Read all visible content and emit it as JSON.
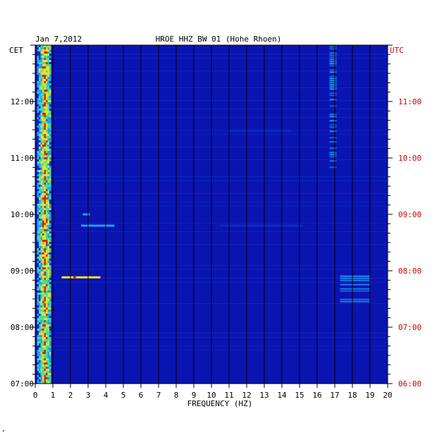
{
  "chart_data": {
    "type": "heatmap",
    "date": "Jan 7,2012",
    "station": "HROE HHZ BW 01 (Hohe Rhoen)",
    "left_zone": "CET",
    "right_zone": "UTC",
    "xlabel": "FREQUENCY (HZ)",
    "x_ticks": [
      "0",
      "1",
      "2",
      "3",
      "4",
      "5",
      "6",
      "7",
      "8",
      "9",
      "10",
      "11",
      "12",
      "13",
      "14",
      "15",
      "16",
      "17",
      "18",
      "19",
      "20"
    ],
    "xlim": [
      0,
      20
    ],
    "cet_ticks": [
      "07:00",
      "08:00",
      "09:00",
      "10:00",
      "11:00",
      "12:00"
    ],
    "utc_ticks": [
      "06:00",
      "07:00",
      "08:00",
      "09:00",
      "10:00",
      "11:00"
    ],
    "ylim_utc": [
      "06:00",
      "12:00"
    ],
    "corner_mark": "*",
    "colors": {
      "background": "#0a14b0",
      "low": "#1028c8",
      "mid": "#20a0ff",
      "high": "#f0e020",
      "peak": "#e02010",
      "utc_label": "#d00000"
    },
    "features": [
      {
        "name": "microseism band",
        "freq_range": [
          0.1,
          0.9
        ],
        "time_range_utc": [
          "06:00",
          "12:00"
        ],
        "level": "high"
      },
      {
        "name": "burst",
        "freq_range": [
          1.5,
          3.7
        ],
        "time_utc": "07:53",
        "level": "high"
      },
      {
        "name": "line",
        "freq_range": [
          2.6,
          4.5
        ],
        "time_utc": "08:48",
        "level": "mid"
      },
      {
        "name": "line",
        "freq_range": [
          2.7,
          3.1
        ],
        "time_utc": "09:00",
        "level": "mid"
      },
      {
        "name": "line",
        "freq_range": [
          10.5,
          15.2
        ],
        "time_utc": "08:48",
        "level": "low"
      },
      {
        "name": "band",
        "freq_range": [
          16.7,
          17.1
        ],
        "time_range_utc": [
          "09:45",
          "11:59"
        ],
        "level": "mid"
      },
      {
        "name": "band",
        "freq_range": [
          17.3,
          19.0
        ],
        "time_range_utc": [
          "07:25",
          "07:55"
        ],
        "level": "mid"
      },
      {
        "name": "line",
        "freq_range": [
          11.0,
          14.5
        ],
        "time_utc": "10:29",
        "level": "low"
      }
    ]
  }
}
